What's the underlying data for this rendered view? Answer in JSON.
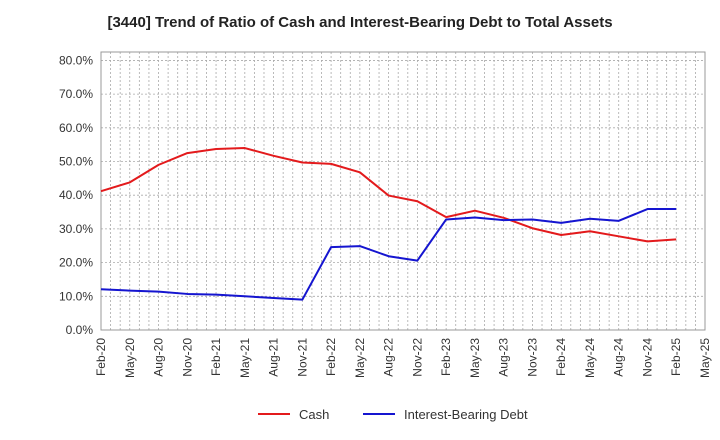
{
  "chart_data": {
    "type": "line",
    "title": "[3440]  Trend of Ratio of Cash and Interest-Bearing Debt to Total Assets",
    "xlabel": "",
    "ylabel": "",
    "ylim": [
      0,
      82.5
    ],
    "y_ticks": [
      0,
      10,
      20,
      30,
      40,
      50,
      60,
      70,
      80
    ],
    "y_tick_labels": [
      "0.0%",
      "10.0%",
      "20.0%",
      "30.0%",
      "40.0%",
      "50.0%",
      "60.0%",
      "70.0%",
      "80.0%"
    ],
    "x_tick_labels": [
      "Feb-20",
      "May-20",
      "Aug-20",
      "Nov-20",
      "Feb-21",
      "May-21",
      "Aug-21",
      "Nov-21",
      "Feb-22",
      "May-22",
      "Aug-22",
      "Nov-22",
      "Feb-23",
      "May-23",
      "Aug-23",
      "Nov-23",
      "Feb-24",
      "May-24",
      "Aug-24",
      "Nov-24",
      "Feb-25",
      "May-25"
    ],
    "x": [
      "Feb-20",
      "May-20",
      "Aug-20",
      "Nov-20",
      "Feb-21",
      "May-21",
      "Aug-21",
      "Nov-21",
      "Feb-22",
      "May-22",
      "Aug-22",
      "Nov-22",
      "Feb-23",
      "May-23",
      "Aug-23",
      "Nov-23",
      "Feb-24",
      "May-24",
      "Aug-24",
      "Nov-24",
      "Feb-25"
    ],
    "grid": true,
    "legend_position": "bottom",
    "series": [
      {
        "name": "Cash",
        "color": "#e31a1c",
        "values": [
          41.2,
          43.8,
          49.0,
          52.5,
          53.7,
          54.0,
          51.7,
          49.7,
          49.3,
          46.8,
          39.9,
          38.2,
          33.5,
          35.4,
          33.3,
          30.2,
          28.2,
          29.3,
          27.8,
          26.3,
          26.9
        ]
      },
      {
        "name": "Interest-Bearing Debt",
        "color": "#1515d0",
        "values": [
          12.1,
          11.7,
          11.4,
          10.7,
          10.5,
          10.0,
          9.5,
          9.0,
          24.6,
          24.9,
          21.9,
          20.6,
          32.8,
          33.4,
          32.6,
          32.8,
          31.8,
          33.0,
          32.4,
          35.9,
          35.9
        ]
      }
    ]
  }
}
